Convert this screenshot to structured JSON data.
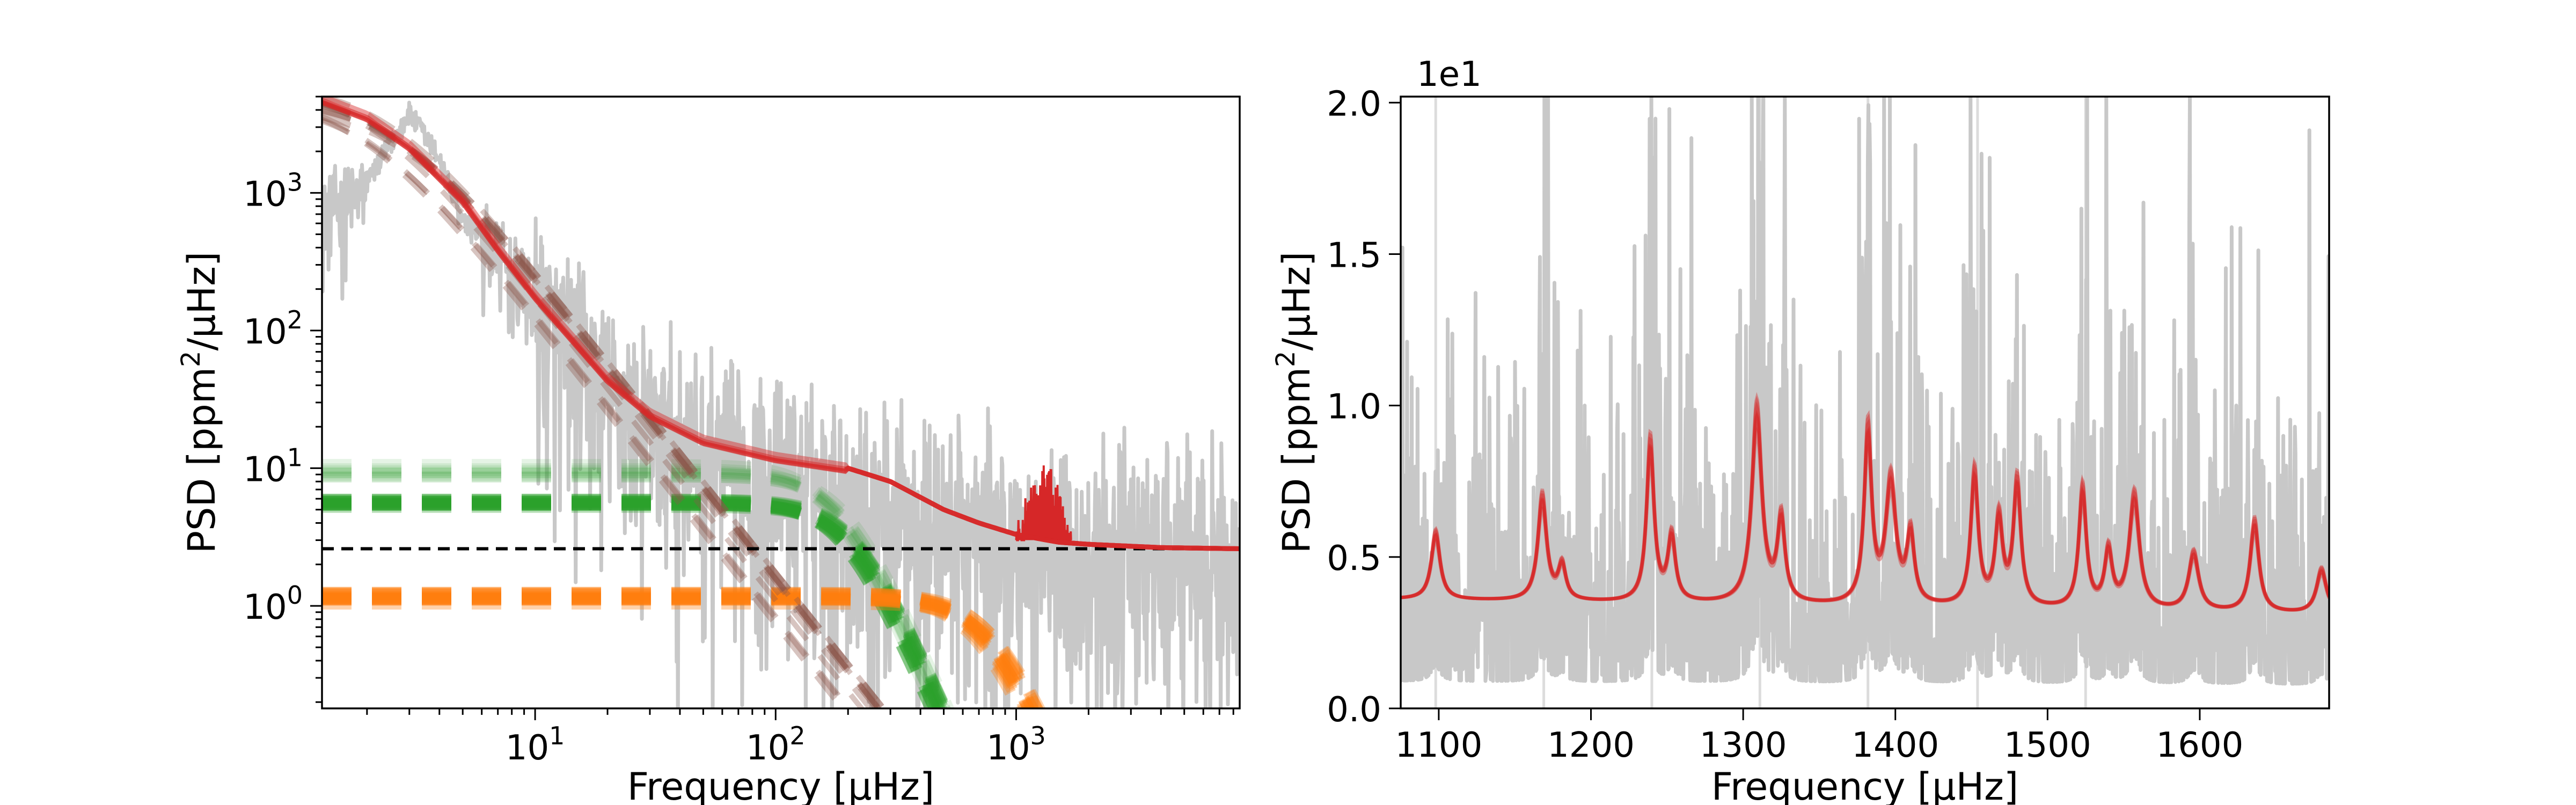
{
  "chart_data": [
    {
      "type": "line",
      "panel": "left",
      "xlabel": "Frequency [μHz]",
      "ylabel": "PSD [ppm²/μHz]",
      "xscale": "log",
      "yscale": "log",
      "xlim": [
        1.3,
        8500
      ],
      "ylim": [
        0.18,
        5000
      ],
      "x_ticks": [
        {
          "value": 10,
          "label": "10¹"
        },
        {
          "value": 100,
          "label": "10²"
        },
        {
          "value": 1000,
          "label": "10³"
        }
      ],
      "y_ticks": [
        {
          "value": 1,
          "label": "10⁰"
        },
        {
          "value": 10,
          "label": "10¹"
        },
        {
          "value": 100,
          "label": "10²"
        },
        {
          "value": 1000,
          "label": "10³"
        }
      ],
      "grid": false,
      "legend": "none",
      "white_noise_level": 2.6,
      "colors": {
        "data": "#c8c8c8",
        "model": "#d62728",
        "granulation_high": "#2ca02c",
        "granulation_low": "#ff7f0e",
        "activity": "#8c564b",
        "noise": "#000000"
      },
      "series": [
        {
          "role": "observed spectrum",
          "style": "solid grey",
          "x": [
            1.3,
            2,
            3,
            4,
            5,
            7,
            10,
            15,
            20,
            30,
            50,
            100,
            200,
            500,
            1000,
            2000,
            5000,
            8500
          ],
          "y": [
            800,
            1200,
            3800,
            1800,
            600,
            400,
            170,
            70,
            40,
            22,
            15,
            10,
            7,
            4.5,
            3.2,
            2.7,
            2.6,
            2.6
          ]
        },
        {
          "role": "total model fit",
          "style": "solid red, semi-transparent samples",
          "x": [
            1.3,
            2,
            3,
            5,
            7,
            10,
            15,
            20,
            30,
            50,
            100,
            200,
            300,
            500,
            700,
            1000,
            1500,
            2000,
            4000,
            8500
          ],
          "y": [
            4800,
            3600,
            2200,
            900,
            400,
            180,
            80,
            45,
            25,
            16,
            12,
            10,
            8,
            5,
            4,
            3.3,
            2.9,
            2.8,
            2.65,
            2.6
          ]
        },
        {
          "role": "oscillation excess",
          "style": "solid red spikes",
          "x": [
            1000,
            1100,
            1200,
            1300,
            1400,
            1500,
            1600,
            1700
          ],
          "y": [
            3.5,
            6,
            8,
            10,
            9,
            7,
            5,
            3.5
          ]
        },
        {
          "role": "granulation component (high)",
          "style": "dashed green, semi-transparent samples",
          "plateau": 5.5,
          "knee": 200,
          "exponent": 4
        },
        {
          "role": "granulation component (high, faint samples)",
          "style": "dashed light green",
          "plateau": 9.5,
          "knee": 180,
          "exponent": 4
        },
        {
          "role": "granulation component (low)",
          "style": "dashed orange, semi-transparent samples",
          "plateau": 1.15,
          "knee": 750,
          "exponent": 4
        },
        {
          "role": "activity component",
          "style": "dashed brown, semi-transparent samples",
          "plateau": 5200,
          "knee": 2.3,
          "exponent": 2.2
        },
        {
          "role": "white noise",
          "style": "dashed black",
          "x": [
            1.3,
            8500
          ],
          "y": [
            2.6,
            2.6
          ]
        }
      ]
    },
    {
      "type": "line",
      "panel": "right",
      "xlabel": "Frequency [μHz]",
      "ylabel": "PSD [ppm²/μHz]",
      "xlim": [
        1075,
        1685
      ],
      "ylim": [
        0,
        2.02
      ],
      "y_offset_label": "1e1",
      "x_ticks": [
        1100,
        1200,
        1300,
        1400,
        1500,
        1600
      ],
      "y_ticks": [
        {
          "value": 0,
          "label": "0.0"
        },
        {
          "value": 0.5,
          "label": "0.5"
        },
        {
          "value": 1.0,
          "label": "1.0"
        },
        {
          "value": 1.5,
          "label": "1.5"
        },
        {
          "value": 2.0,
          "label": "2.0"
        }
      ],
      "grid": false,
      "legend": "none",
      "vertical_reference_lines": [
        1098,
        1169,
        1240,
        1311,
        1382,
        1454,
        1525
      ],
      "colors": {
        "data": "#c8c8c8",
        "model": "#d62728",
        "reference": "#dcdcdc"
      },
      "background_model": {
        "x": [
          1075,
          1685
        ],
        "y": [
          0.36,
          0.31
        ]
      },
      "mode_peaks": [
        {
          "freq": 1098,
          "height": 0.57,
          "width": 3.5
        },
        {
          "freq": 1168,
          "height": 0.68,
          "width": 3.5
        },
        {
          "freq": 1181,
          "height": 0.46,
          "width": 3
        },
        {
          "freq": 1239,
          "height": 0.85,
          "width": 3
        },
        {
          "freq": 1253,
          "height": 0.55,
          "width": 3
        },
        {
          "freq": 1309,
          "height": 0.95,
          "width": 4
        },
        {
          "freq": 1325,
          "height": 0.6,
          "width": 3
        },
        {
          "freq": 1382,
          "height": 0.88,
          "width": 3
        },
        {
          "freq": 1397,
          "height": 0.72,
          "width": 4
        },
        {
          "freq": 1410,
          "height": 0.55,
          "width": 3
        },
        {
          "freq": 1452,
          "height": 0.75,
          "width": 3
        },
        {
          "freq": 1468,
          "height": 0.6,
          "width": 3
        },
        {
          "freq": 1480,
          "height": 0.72,
          "width": 3
        },
        {
          "freq": 1523,
          "height": 0.7,
          "width": 3
        },
        {
          "freq": 1540,
          "height": 0.5,
          "width": 3
        },
        {
          "freq": 1557,
          "height": 0.68,
          "width": 4
        },
        {
          "freq": 1596,
          "height": 0.5,
          "width": 4
        },
        {
          "freq": 1636,
          "height": 0.6,
          "width": 3.5
        },
        {
          "freq": 1680,
          "height": 0.45,
          "width": 4
        }
      ],
      "observed_spikes": [
        {
          "freq": 1305,
          "height": 1.26
        },
        {
          "freq": 1383,
          "height": 1.93
        },
        {
          "freq": 1413,
          "height": 1.86
        },
        {
          "freq": 1526,
          "height": 2.02
        },
        {
          "freq": 1563,
          "height": 1.67
        },
        {
          "freq": 1298,
          "height": 1.38
        },
        {
          "freq": 1333,
          "height": 1.35
        },
        {
          "freq": 1243,
          "height": 1.22
        },
        {
          "freq": 1479,
          "height": 1.22
        },
        {
          "freq": 1448,
          "height": 1.05
        },
        {
          "freq": 1624,
          "height": 1.0
        },
        {
          "freq": 1196,
          "height": 1.0
        },
        {
          "freq": 1655,
          "height": 0.9
        },
        {
          "freq": 1110,
          "height": 0.9
        }
      ]
    }
  ]
}
